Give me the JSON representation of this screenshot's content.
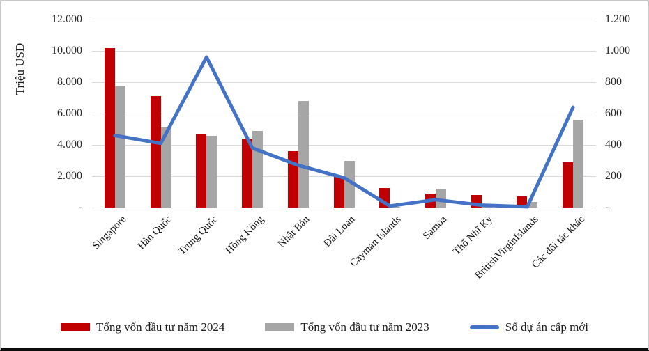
{
  "colors": {
    "bar_2024": "#C00000",
    "bar_2023": "#A6A6A6",
    "line": "#4472C4",
    "grid": "#d9d9d9",
    "text": "#1a1a1a"
  },
  "chart_data": {
    "type": "bar",
    "title": "",
    "grid": true,
    "legend_position": "bottom",
    "left_axis": {
      "label": "Triệu USD",
      "min": 0,
      "max": 12000,
      "step": 2000,
      "ticks": [
        "12.000",
        "10.000",
        "8.000",
        "6.000",
        "4.000",
        "2.000",
        "-"
      ]
    },
    "right_axis": {
      "min": 0,
      "max": 1200,
      "step": 200,
      "ticks": [
        "1.200",
        "1.000",
        "800",
        "600",
        "400",
        "200",
        "-"
      ]
    },
    "categories": [
      "Singapore",
      "Hàn Quốc",
      "Trung Quốc",
      "Hồng Kông",
      "Nhật Bản",
      "Đài Loan",
      "Cayman Islands",
      "Samoa",
      "Thổ Nhĩ Kỳ",
      "BritishVirginIslands",
      "Các đối tác khác"
    ],
    "series": [
      {
        "name": "Tổng vốn đầu tư năm 2024",
        "type": "bar",
        "axis": "left",
        "color": "#C00000",
        "values": [
          10200,
          7100,
          4700,
          4400,
          3600,
          1950,
          1250,
          900,
          800,
          700,
          2900
        ]
      },
      {
        "name": "Tổng vốn đầu tư năm 2023",
        "type": "bar",
        "axis": "left",
        "color": "#A6A6A6",
        "values": [
          7800,
          5100,
          4600,
          4900,
          6800,
          3000,
          40,
          1200,
          40,
          350,
          5600
        ]
      },
      {
        "name": "Số dự án cấp mới",
        "type": "line",
        "axis": "right",
        "color": "#4472C4",
        "values": [
          460,
          410,
          960,
          380,
          270,
          190,
          10,
          50,
          15,
          5,
          640
        ]
      }
    ]
  }
}
